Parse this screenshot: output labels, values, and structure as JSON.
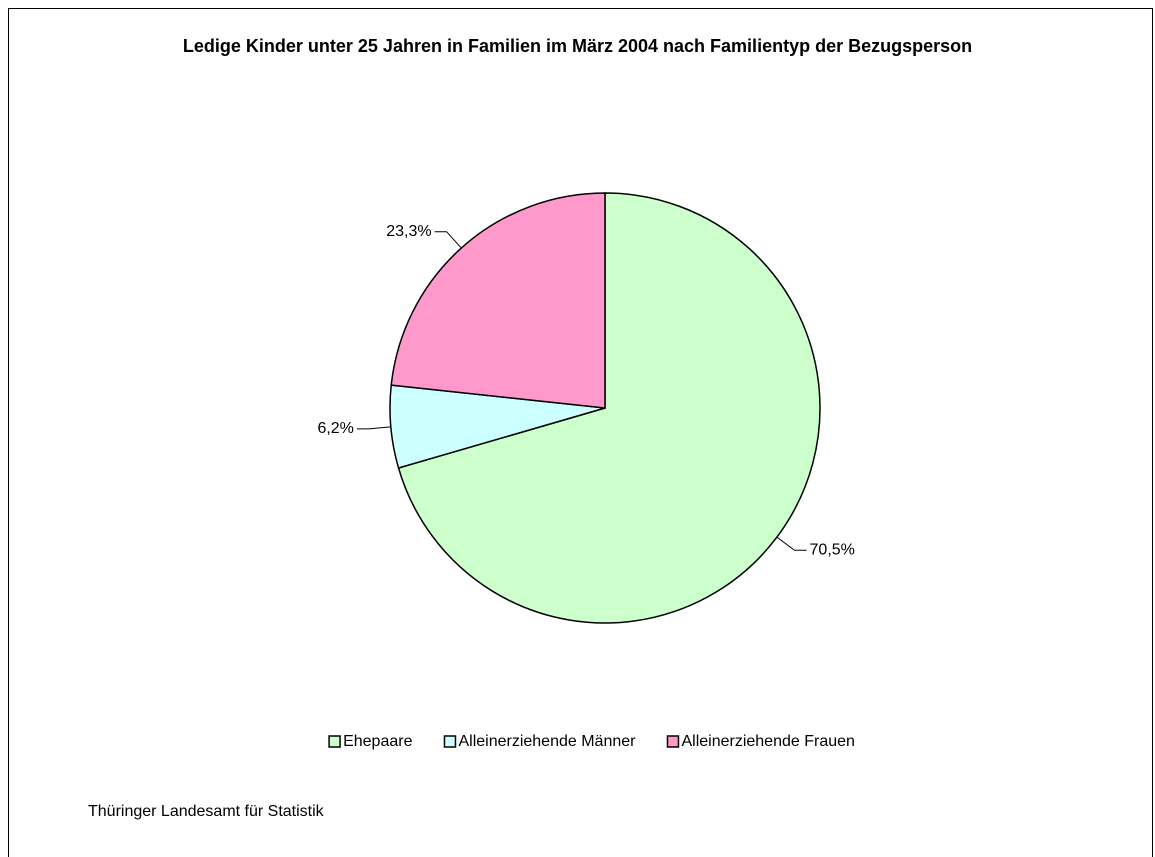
{
  "chart_data": {
    "type": "pie",
    "title": "Ledige Kinder unter 25 Jahren in Familien im März 2004 nach Familientyp der Bezugsperson",
    "categories": [
      "Ehepaare",
      "Alleinerziehende Männer",
      "Alleinerziehende Frauen"
    ],
    "values": [
      70.5,
      6.2,
      23.3
    ],
    "value_labels": [
      "70,5%",
      "6,2%",
      "23,3%"
    ],
    "colors": [
      "#ccffcc",
      "#ccffff",
      "#ff99cc"
    ],
    "legend": "bottom",
    "source": "Thüringer Landesamt für Statistik"
  }
}
